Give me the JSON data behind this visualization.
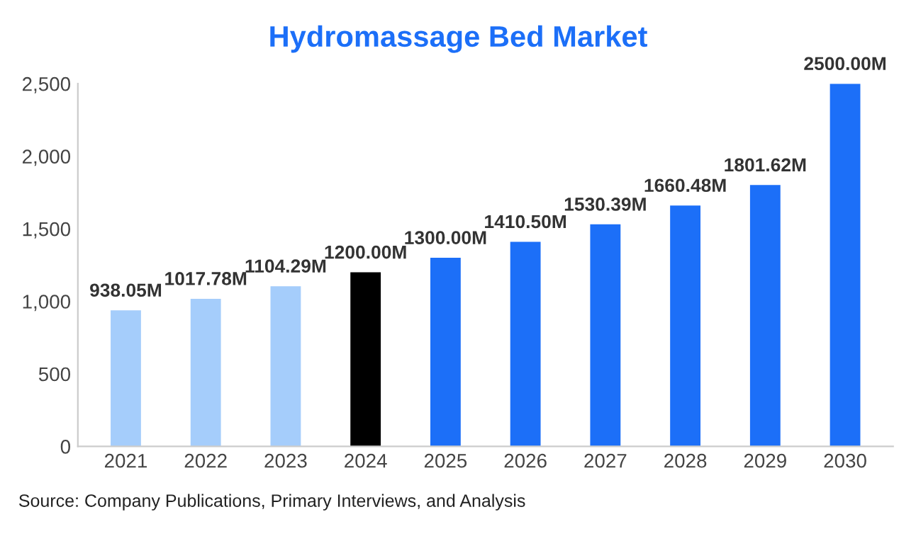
{
  "chart_data": {
    "type": "bar",
    "title": "Hydromassage Bed Market",
    "categories": [
      "2021",
      "2022",
      "2023",
      "2024",
      "2025",
      "2026",
      "2027",
      "2028",
      "2029",
      "2030"
    ],
    "values": [
      938.05,
      1017.78,
      1104.29,
      1200.0,
      1300.0,
      1410.5,
      1530.39,
      1660.48,
      1801.62,
      2500.0
    ],
    "colors": [
      "#a5cdfb",
      "#a5cdfb",
      "#a5cdfb",
      "#000000",
      "#1c6ff8",
      "#1c6ff8",
      "#1c6ff8",
      "#1c6ff8",
      "#1c6ff8",
      "#1c6ff8"
    ],
    "value_labels": [
      "938.05M",
      "1017.78M",
      "1104.29M",
      "1200.00M",
      "1300.00M",
      "1410.50M",
      "1530.39M",
      "1660.48M",
      "1801.62M",
      "2500.00M"
    ],
    "ylim": [
      0,
      2500
    ],
    "yticks": [
      0,
      500,
      {
        "value": 1000,
        "label": "1,000"
      },
      {
        "value": 1500,
        "label": "1,500"
      },
      {
        "value": 2000,
        "label": "2,000"
      },
      {
        "value": 2500,
        "label": "2,500"
      }
    ],
    "grid": false,
    "annotations": [
      "Source: Company Publications, Primary Interviews, and Analysis"
    ]
  }
}
